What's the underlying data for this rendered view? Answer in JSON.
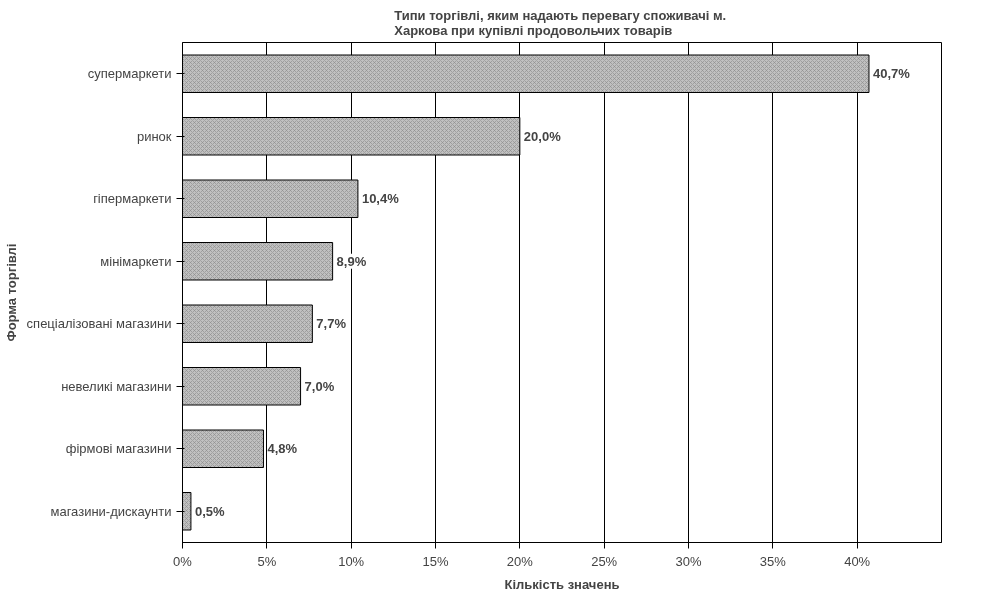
{
  "chart_data": {
    "type": "bar",
    "orientation": "horizontal",
    "title": "Типи торгівлі, яким надають перевагу споживачі  м. Харкова при купівлі продовольчих товарів",
    "xlabel": "Кількість значень",
    "ylabel": "Форма торгівлі",
    "categories": [
      "супермаркети",
      "ринок",
      "гіпермаркети",
      "мінімаркети",
      "спеціалізовані магазини",
      "невеликі магазини",
      "фірмові магазини",
      "магазини-дискаунти"
    ],
    "values": [
      40.7,
      20.0,
      10.4,
      8.9,
      7.7,
      7.0,
      4.8,
      0.5
    ],
    "value_labels": [
      "40,7%",
      "20,0%",
      "10,4%",
      "8,9%",
      "7,7%",
      "7,0%",
      "4,8%",
      "0,5%"
    ],
    "color": "#c0c0c0",
    "xlim": [
      0,
      45
    ],
    "xticks": [
      {
        "value": 0,
        "label": "0%"
      },
      {
        "value": 5,
        "label": "5%"
      },
      {
        "value": 10,
        "label": "10%"
      },
      {
        "value": 15,
        "label": "15%"
      },
      {
        "value": 20,
        "label": "20%"
      },
      {
        "value": 25,
        "label": "25%"
      },
      {
        "value": 30,
        "label": "30%"
      },
      {
        "value": 35,
        "label": "35%"
      },
      {
        "value": 40,
        "label": "40%"
      }
    ],
    "grid": "x"
  }
}
